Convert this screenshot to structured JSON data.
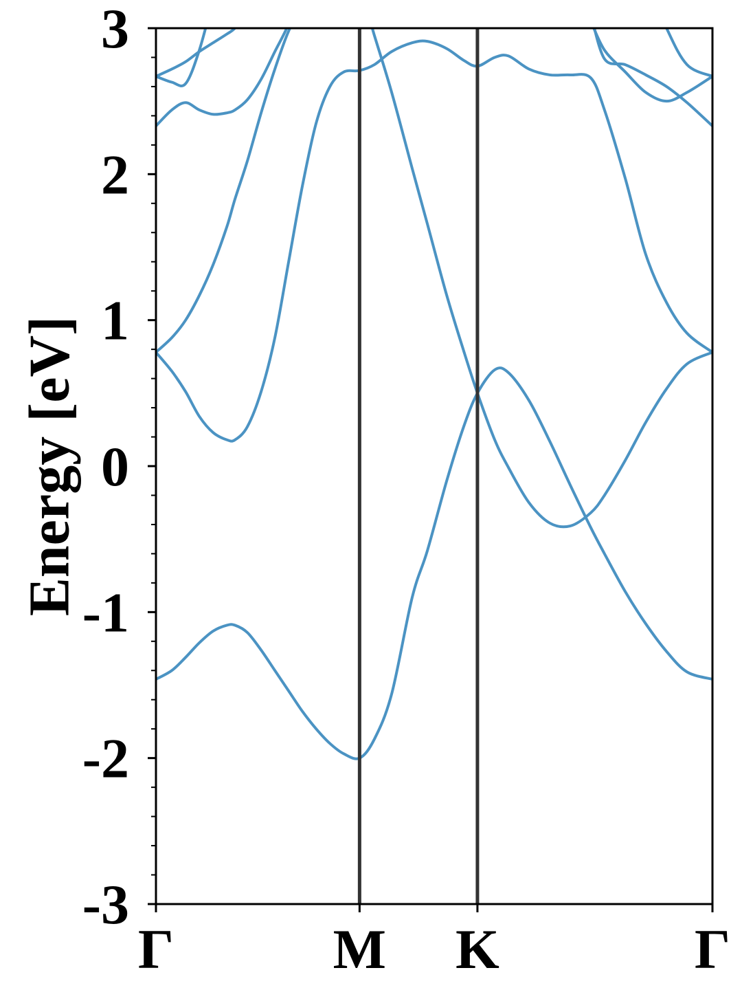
{
  "chart_data": {
    "type": "line",
    "ylabel": "Energy [eV]",
    "x": [
      0,
      0.045,
      0.084,
      0.123,
      0.162,
      0.201,
      0.224,
      0.259,
      0.298,
      0.337,
      0.376,
      0.415,
      0.454,
      0.493,
      0.532,
      0.577,
      0.619,
      0.668,
      0.726,
      0.769,
      0.824,
      0.872,
      0.911,
      0.96,
      0.999,
      1.057,
      1.116,
      1.174,
      1.232,
      1.271,
      1.33,
      1.388,
      1.447,
      1.505,
      1.577
    ],
    "xlim": [
      0,
      1.577
    ],
    "xticks": [
      {
        "value": 0,
        "label": "Γ"
      },
      {
        "value": 0.577,
        "label": "M"
      },
      {
        "value": 0.911,
        "label": "K"
      },
      {
        "value": 1.577,
        "label": "Γ"
      }
    ],
    "ylim": [
      -3,
      3
    ],
    "yticks": [
      -3,
      -2,
      -1,
      0,
      1,
      2,
      3
    ],
    "yminorticks": [
      -2.8,
      -2.6,
      -2.4,
      -2.2,
      -1.8,
      -1.6,
      -1.4,
      -1.2,
      -0.8,
      -0.6,
      -0.4,
      -0.2,
      0.2,
      0.4,
      0.6,
      0.8,
      1.2,
      1.4,
      1.6,
      1.8,
      2.2,
      2.4,
      2.6,
      2.8
    ],
    "vlines_at_inner_xticks": true,
    "color": "#4b93c3",
    "series": [
      {
        "values": [
          -1.46,
          -1.4,
          -1.31,
          -1.21,
          -1.13,
          -1.09,
          -1.09,
          -1.14,
          -1.26,
          -1.4,
          -1.54,
          -1.68,
          -1.8,
          -1.9,
          -1.97,
          -2.0,
          -1.87,
          -1.56,
          -0.9,
          -0.58,
          -0.1,
          0.27,
          0.5,
          0.66,
          0.64,
          0.45,
          0.17,
          -0.13,
          -0.42,
          -0.6,
          -0.86,
          -1.08,
          -1.27,
          -1.41,
          -1.46
        ]
      },
      {
        "values": [
          0.78,
          0.65,
          0.51,
          0.34,
          0.23,
          0.18,
          0.18,
          0.27,
          0.51,
          0.88,
          1.4,
          1.92,
          2.35,
          2.6,
          2.7,
          2.71,
          2.75,
          2.84,
          2.9,
          2.91,
          2.86,
          2.78,
          2.74,
          2.8,
          2.81,
          2.72,
          2.68,
          2.68,
          2.66,
          2.44,
          1.97,
          1.45,
          1.12,
          0.91,
          0.78
        ]
      },
      {
        "values": [
          0.78,
          0.88,
          1.0,
          1.17,
          1.38,
          1.64,
          1.83,
          2.09,
          2.42,
          2.72,
          2.98,
          3.15,
          3.25,
          3.3,
          3.3,
          3.28,
          2.95,
          2.56,
          2.04,
          1.66,
          1.17,
          0.79,
          0.5,
          0.18,
          -0.01,
          -0.25,
          -0.39,
          -0.41,
          -0.32,
          -0.2,
          0.04,
          0.3,
          0.53,
          0.7,
          0.78
        ]
      },
      {
        "values": [
          2.33,
          2.44,
          2.49,
          2.44,
          2.41,
          2.42,
          2.44,
          2.51,
          2.65,
          2.84,
          3.03,
          3.3,
          null,
          null,
          null,
          null,
          null,
          null,
          null,
          null,
          null,
          null,
          null,
          null,
          null,
          null,
          null,
          null,
          3.1,
          2.79,
          2.75,
          2.68,
          2.6,
          2.49,
          2.33
        ]
      },
      {
        "values": [
          2.67,
          2.63,
          2.62,
          2.85,
          3.2,
          null,
          null,
          null,
          null,
          null,
          null,
          null,
          null,
          null,
          null,
          null,
          null,
          null,
          null,
          null,
          null,
          null,
          null,
          null,
          null,
          null,
          null,
          null,
          3.05,
          2.85,
          2.7,
          2.56,
          2.5,
          2.56,
          2.67
        ]
      },
      {
        "values": [
          2.67,
          2.72,
          2.77,
          2.84,
          2.9,
          2.96,
          3.0,
          3.1,
          null,
          null,
          null,
          null,
          null,
          null,
          null,
          null,
          null,
          null,
          null,
          null,
          null,
          null,
          null,
          null,
          null,
          null,
          null,
          null,
          null,
          null,
          null,
          3.35,
          3.0,
          2.75,
          2.67
        ]
      }
    ]
  }
}
